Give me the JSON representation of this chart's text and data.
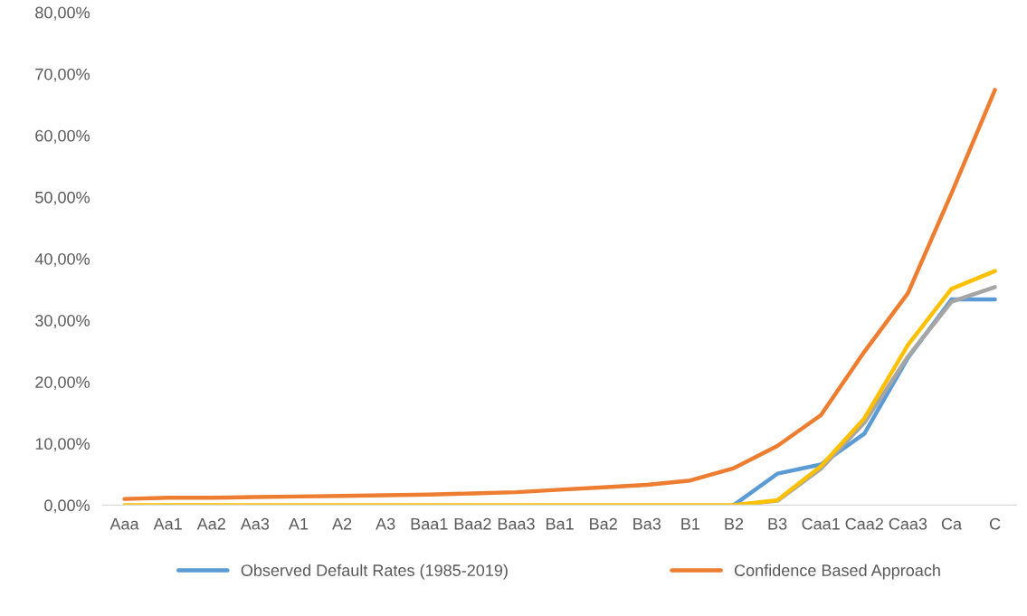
{
  "chart_data": {
    "type": "line",
    "categories": [
      "Aaa",
      "Aa1",
      "Aa2",
      "Aa3",
      "A1",
      "A2",
      "A3",
      "Baa1",
      "Baa2",
      "Baa3",
      "Ba1",
      "Ba2",
      "Ba3",
      "B1",
      "B2",
      "B3",
      "Caa1",
      "Caa2",
      "Caa3",
      "Ca",
      "C"
    ],
    "series": [
      {
        "name": "Observed Default Rates (1985-2019)",
        "color": "#5b9bd5",
        "values": [
          null,
          null,
          null,
          null,
          null,
          null,
          null,
          null,
          null,
          null,
          null,
          null,
          null,
          null,
          0,
          5.1,
          6.6,
          11.6,
          23.9,
          33.4,
          33.4
        ]
      },
      {
        "name": "Confidence Based Approach",
        "color": "#ed7d31",
        "values": [
          1.0,
          1.2,
          1.2,
          1.3,
          1.4,
          1.5,
          1.6,
          1.7,
          1.9,
          2.1,
          2.5,
          2.9,
          3.3,
          4.0,
          6.0,
          9.6,
          14.6,
          24.9,
          34.4,
          50.6,
          67.4
        ]
      },
      {
        "color": "#a5a5a5",
        "values": [
          null,
          null,
          null,
          null,
          null,
          null,
          null,
          null,
          null,
          null,
          null,
          null,
          null,
          null,
          0,
          0.7,
          5.9,
          13.4,
          24.1,
          33.0,
          35.4
        ]
      },
      {
        "color": "#ffc000",
        "values": [
          0,
          0,
          0,
          0,
          0,
          0,
          0,
          0,
          0,
          0,
          0,
          0,
          0,
          0,
          0,
          0.8,
          6.3,
          14.1,
          26.0,
          35.1,
          38.0
        ]
      }
    ],
    "ylim": [
      0,
      80
    ],
    "yticks": [
      {
        "value": 0,
        "label": "0,00%"
      },
      {
        "value": 10,
        "label": "10,00%"
      },
      {
        "value": 20,
        "label": "20,00%"
      },
      {
        "value": 30,
        "label": "30,00%"
      },
      {
        "value": 40,
        "label": "40,00%"
      },
      {
        "value": 50,
        "label": "50,00%"
      },
      {
        "value": 60,
        "label": "60,00%"
      },
      {
        "value": 70,
        "label": "70,00%"
      },
      {
        "value": 80,
        "label": "80,00%"
      }
    ],
    "grid": false,
    "legend": "bottom",
    "marker": "none",
    "line_style": "solid"
  }
}
